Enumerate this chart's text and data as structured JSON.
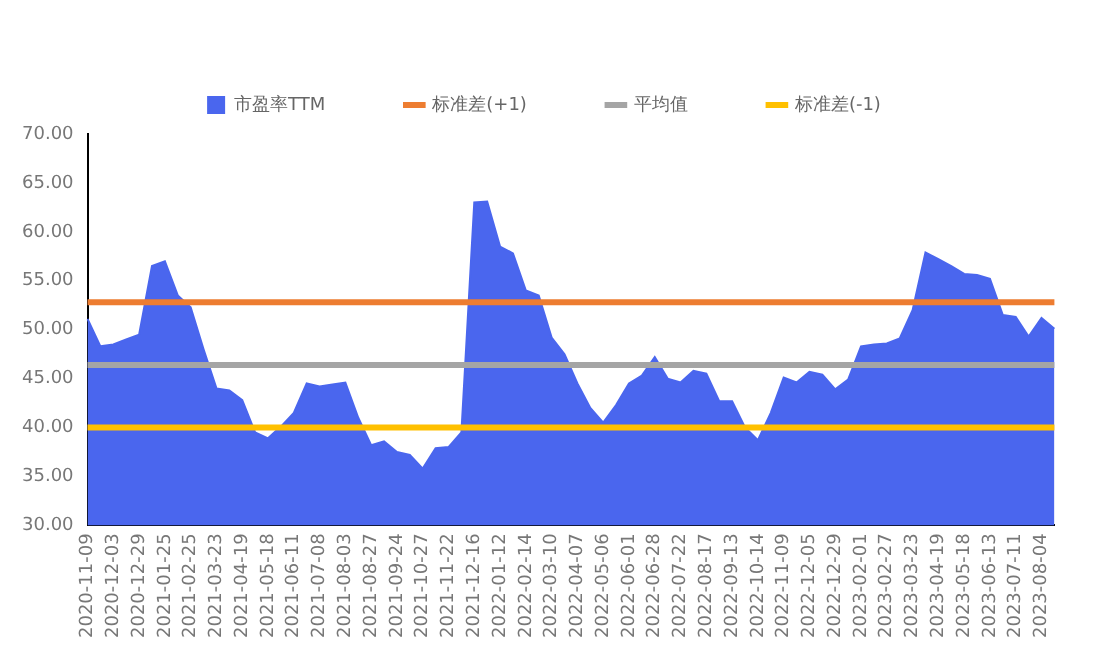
{
  "chart_data": {
    "type": "area",
    "legend": "top",
    "grid": false,
    "categories": [
      "2020-11-09",
      null,
      "2020-12-03",
      null,
      "2020-12-29",
      null,
      "2021-01-25",
      null,
      "2021-02-25",
      null,
      "2021-03-23",
      null,
      "2021-04-19",
      null,
      "2021-05-18",
      null,
      "2021-06-11",
      null,
      "2021-07-08",
      null,
      "2021-08-03",
      null,
      "2021-08-27",
      null,
      "2021-09-24",
      null,
      "2021-10-27",
      null,
      "2021-11-22",
      null,
      "2021-12-16",
      null,
      "2022-01-12",
      null,
      "2022-02-14",
      null,
      "2022-03-10",
      null,
      "2022-04-07",
      null,
      "2022-05-06",
      null,
      "2022-06-01",
      null,
      "2022-06-28",
      null,
      "2022-07-22",
      null,
      "2022-08-17",
      null,
      "2022-09-13",
      null,
      "2022-10-14",
      null,
      "2022-11-09",
      null,
      "2022-12-05",
      null,
      "2022-12-29",
      null,
      "2023-02-01",
      null,
      "2023-02-27",
      null,
      "2023-03-23",
      null,
      "2023-04-19",
      null,
      "2023-05-18",
      null,
      "2023-06-13",
      null,
      "2023-07-11",
      null,
      "2023-08-04",
      null
    ],
    "ylim": [
      30,
      70
    ],
    "yticks": [
      {
        "value": 30,
        "label": "30.00"
      },
      {
        "value": 35,
        "label": "35.00"
      },
      {
        "value": 40,
        "label": "40.00"
      },
      {
        "value": 45,
        "label": "45.00"
      },
      {
        "value": 50,
        "label": "50.00"
      },
      {
        "value": 55,
        "label": "55.00"
      },
      {
        "value": 60,
        "label": "60.00"
      },
      {
        "value": 65,
        "label": "65.00"
      },
      {
        "value": 70,
        "label": "70.00"
      }
    ],
    "series": [
      {
        "name": "市盈率TTM",
        "type": "area",
        "color": "#4a66ee",
        "values": [
          51.1,
          48.3,
          48.5,
          49.0,
          49.5,
          56.5,
          57.0,
          53.5,
          52.3,
          48.0,
          44.0,
          43.8,
          42.8,
          39.5,
          38.9,
          40.1,
          41.5,
          44.5,
          44.2,
          44.4,
          44.6,
          41.0,
          38.2,
          38.6,
          37.5,
          37.2,
          35.8,
          37.9,
          38.0,
          39.5,
          63.0,
          63.1,
          58.5,
          57.8,
          54.0,
          53.5,
          49.2,
          47.5,
          44.5,
          42.0,
          40.5,
          42.3,
          44.5,
          45.3,
          47.2,
          45.0,
          44.6,
          45.8,
          45.5,
          42.7,
          42.7,
          40.0,
          38.7,
          41.5,
          45.1,
          44.6,
          45.7,
          45.4,
          43.9,
          44.9,
          48.3,
          48.5,
          48.6,
          49.1,
          52.0,
          57.9,
          57.2,
          56.5,
          55.7,
          55.6,
          55.2,
          51.5,
          51.3,
          49.3,
          51.2,
          50.1
        ]
      },
      {
        "name": "标准差(+1)",
        "type": "line",
        "color": "#ed7d31",
        "values": [
          52.8,
          52.8,
          52.8,
          52.8,
          52.8,
          52.8,
          52.8,
          52.8,
          52.8,
          52.8,
          52.8,
          52.8,
          52.8,
          52.8,
          52.8,
          52.8,
          52.8,
          52.8,
          52.8,
          52.8,
          52.8,
          52.8,
          52.8,
          52.8,
          52.8,
          52.8,
          52.8,
          52.8,
          52.8,
          52.8,
          52.8,
          52.8,
          52.8,
          52.8,
          52.8,
          52.8,
          52.8,
          52.8,
          52.8,
          52.8,
          52.8,
          52.8,
          52.8,
          52.8,
          52.8,
          52.8,
          52.8,
          52.8,
          52.8,
          52.8,
          52.8,
          52.8,
          52.8,
          52.8,
          52.8,
          52.8,
          52.8,
          52.8,
          52.8,
          52.8,
          52.8,
          52.8,
          52.8,
          52.8,
          52.8,
          52.8,
          52.8,
          52.8,
          52.8,
          52.8,
          52.8,
          52.8,
          52.8,
          52.8,
          52.8,
          52.8
        ]
      },
      {
        "name": "平均值",
        "type": "line",
        "color": "#a5a5a5",
        "values": [
          46.4,
          46.4,
          46.4,
          46.4,
          46.4,
          46.4,
          46.4,
          46.4,
          46.4,
          46.4,
          46.4,
          46.4,
          46.4,
          46.4,
          46.4,
          46.4,
          46.4,
          46.4,
          46.4,
          46.4,
          46.4,
          46.4,
          46.4,
          46.4,
          46.4,
          46.4,
          46.4,
          46.4,
          46.4,
          46.4,
          46.4,
          46.4,
          46.4,
          46.4,
          46.4,
          46.4,
          46.4,
          46.4,
          46.4,
          46.4,
          46.4,
          46.4,
          46.4,
          46.4,
          46.4,
          46.4,
          46.4,
          46.4,
          46.4,
          46.4,
          46.4,
          46.4,
          46.4,
          46.4,
          46.4,
          46.4,
          46.4,
          46.4,
          46.4,
          46.4,
          46.4,
          46.4,
          46.4,
          46.4,
          46.4,
          46.4,
          46.4,
          46.4,
          46.4,
          46.4,
          46.4,
          46.4,
          46.4,
          46.4,
          46.4,
          46.4
        ]
      },
      {
        "name": "标准差(-1)",
        "type": "line",
        "color": "#ffc000",
        "values": [
          40.0,
          40.0,
          40.0,
          40.0,
          40.0,
          40.0,
          40.0,
          40.0,
          40.0,
          40.0,
          40.0,
          40.0,
          40.0,
          40.0,
          40.0,
          40.0,
          40.0,
          40.0,
          40.0,
          40.0,
          40.0,
          40.0,
          40.0,
          40.0,
          40.0,
          40.0,
          40.0,
          40.0,
          40.0,
          40.0,
          40.0,
          40.0,
          40.0,
          40.0,
          40.0,
          40.0,
          40.0,
          40.0,
          40.0,
          40.0,
          40.0,
          40.0,
          40.0,
          40.0,
          40.0,
          40.0,
          40.0,
          40.0,
          40.0,
          40.0,
          40.0,
          40.0,
          40.0,
          40.0,
          40.0,
          40.0,
          40.0,
          40.0,
          40.0,
          40.0,
          40.0,
          40.0,
          40.0,
          40.0,
          40.0,
          40.0,
          40.0,
          40.0,
          40.0,
          40.0,
          40.0,
          40.0,
          40.0,
          40.0,
          40.0,
          40.0
        ]
      }
    ]
  }
}
